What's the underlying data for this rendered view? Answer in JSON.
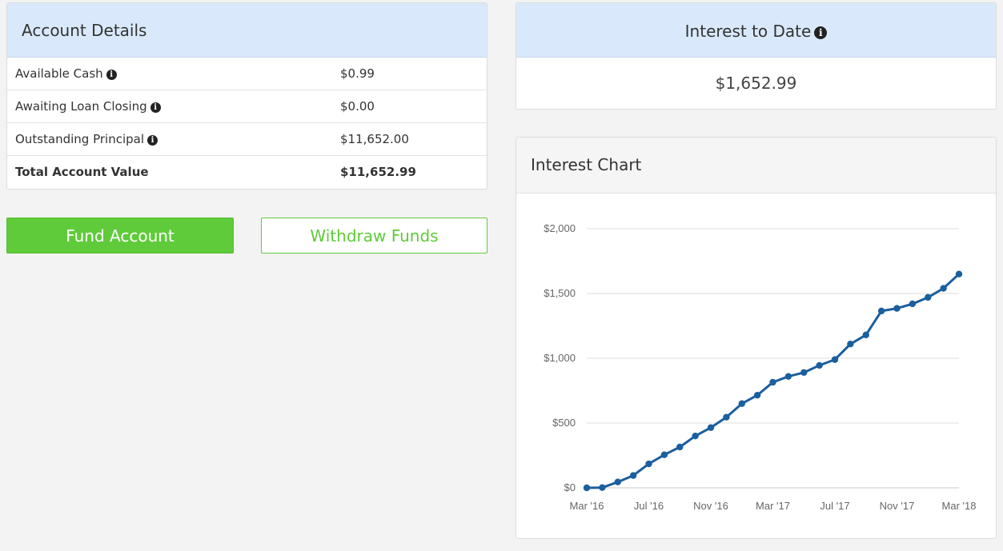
{
  "account": {
    "title": "Account Details",
    "rows": [
      {
        "label": "Available Cash",
        "value": "$0.99",
        "info": "info-icon"
      },
      {
        "label": "Awaiting Loan Closing",
        "value": "$0.00",
        "info": "info-icon"
      },
      {
        "label": "Outstanding Principal",
        "value": "$11,652.00",
        "info": "info-icon"
      },
      {
        "label": "Total Account Value",
        "value": "$11,652.99"
      }
    ]
  },
  "buttons": {
    "fund": "Fund Account",
    "withdraw": "Withdraw Funds"
  },
  "interest": {
    "title": "Interest to Date",
    "value": "$1,652.99"
  },
  "chart_panel": {
    "title": "Interest Chart"
  },
  "colors": {
    "header_blue": "#d9e9fb",
    "green": "#5fcb3a",
    "line": "#1a5f9e"
  },
  "chart_data": {
    "type": "line",
    "title": "",
    "xlabel": "",
    "ylabel": "",
    "x_ticks": [
      "Mar '16",
      "Jul '16",
      "Nov '16",
      "Mar '17",
      "Jul '17",
      "Nov '17",
      "Mar '18"
    ],
    "y_ticks": [
      "$0",
      "$500",
      "$1,000",
      "$1,500",
      "$2,000"
    ],
    "ylim": [
      0,
      2000
    ],
    "grid": true,
    "series": [
      {
        "x": [
          "Mar '16",
          "Apr '16",
          "May '16",
          "Jun '16",
          "Jul '16",
          "Aug '16",
          "Sep '16",
          "Oct '16",
          "Nov '16",
          "Dec '16",
          "Jan '17",
          "Feb '17",
          "Mar '17",
          "Apr '17",
          "May '17",
          "Jun '17",
          "Jul '17",
          "Aug '17",
          "Sep '17",
          "Oct '17",
          "Nov '17",
          "Dec '17",
          "Jan '18",
          "Feb '18",
          "Mar '18"
        ],
        "values": [
          0,
          2,
          45,
          95,
          185,
          255,
          315,
          400,
          465,
          545,
          650,
          715,
          815,
          860,
          890,
          945,
          990,
          1110,
          1180,
          1365,
          1385,
          1420,
          1470,
          1540,
          1650
        ]
      }
    ]
  }
}
